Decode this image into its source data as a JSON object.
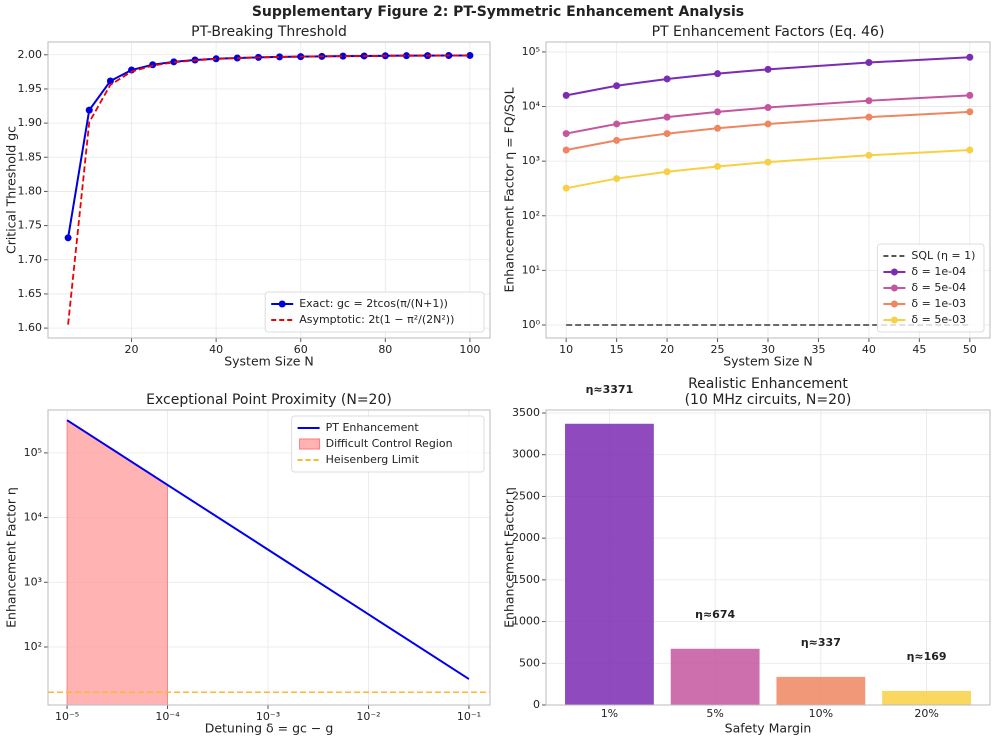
{
  "title": "Supplementary Figure 2: PT-Symmetric Enhancement Analysis",
  "chart_data": [
    {
      "type": "line",
      "title": "PT-Breaking Threshold",
      "x_label": "System Size N",
      "y_label": "Critical Threshold gc",
      "x": [
        5,
        10,
        15,
        20,
        25,
        30,
        35,
        40,
        45,
        50,
        55,
        60,
        65,
        70,
        75,
        80,
        85,
        90,
        95,
        100
      ],
      "series": [
        {
          "name": "Exact: gc = 2tcos(π/(N+1))",
          "color": "#0000dd",
          "dash": false,
          "marker": true,
          "values": [
            1.7321,
            1.919,
            1.9616,
            1.9777,
            1.9854,
            1.9897,
            1.9924,
            1.9941,
            1.9953,
            1.9962,
            1.9969,
            1.9973,
            1.9977,
            1.998,
            1.9983,
            1.9985,
            1.9987,
            1.9988,
            1.9989,
            1.999
          ]
        },
        {
          "name": "Asymptotic: 2t(1 − π²/(2N²))",
          "color": "#ee0000",
          "dash": true,
          "marker": false,
          "values": [
            1.6052,
            1.9013,
            1.9561,
            1.9753,
            1.9842,
            1.989,
            1.9919,
            1.9938,
            1.9951,
            1.9961,
            1.9967,
            1.9973,
            1.9977,
            1.998,
            1.9982,
            1.9985,
            1.9986,
            1.9988,
            1.9989,
            1.999
          ]
        }
      ],
      "xlim": [
        0.25,
        104.75
      ],
      "ylim": [
        1.5855,
        2.0187
      ],
      "xticks": [
        20,
        40,
        60,
        80,
        100
      ],
      "yticks": [
        {
          "value": 1.6,
          "label": "1.60"
        },
        {
          "value": 1.65,
          "label": "1.65"
        },
        {
          "value": 1.7,
          "label": "1.70"
        },
        {
          "value": 1.75,
          "label": "1.75"
        },
        {
          "value": 1.8,
          "label": "1.80"
        },
        {
          "value": 1.85,
          "label": "1.85"
        },
        {
          "value": 1.9,
          "label": "1.90"
        },
        {
          "value": 1.95,
          "label": "1.95"
        },
        {
          "value": 2.0,
          "label": "2.00"
        }
      ],
      "grid": true,
      "legend": "lower right"
    },
    {
      "type": "line",
      "title": "PT Enhancement Factors (Eq. 46)",
      "x_label": "System Size N",
      "y_label": "Enhancement Factor η = FQ/SQL",
      "y_log": true,
      "x": [
        10,
        15,
        20,
        25,
        30,
        40,
        50
      ],
      "series": [
        {
          "name": "SQL (η = 1)",
          "color": "#555555",
          "dash": true,
          "marker": false,
          "values": [
            1,
            1,
            1,
            1,
            1,
            1,
            1
          ]
        },
        {
          "name": "δ = 1e-04",
          "color": "#7b2cb2",
          "dash": false,
          "marker": true,
          "values": [
            16000,
            24000,
            32000,
            40000,
            48000,
            64000,
            80000
          ]
        },
        {
          "name": "δ = 5e-04",
          "color": "#c4559f",
          "dash": false,
          "marker": true,
          "values": [
            3200,
            4800,
            6400,
            8000,
            9600,
            12800,
            16000
          ]
        },
        {
          "name": "δ = 1e-03",
          "color": "#ee8660",
          "dash": false,
          "marker": true,
          "values": [
            1600,
            2400,
            3200,
            4000,
            4800,
            6400,
            8000
          ]
        },
        {
          "name": "δ = 5e-03",
          "color": "#f8d044",
          "dash": false,
          "marker": true,
          "values": [
            320,
            480,
            640,
            800,
            960,
            1280,
            1600
          ]
        }
      ],
      "xlim": [
        8,
        52
      ],
      "ylim": [
        0.578,
        152000
      ],
      "xticks": [
        10,
        15,
        20,
        25,
        30,
        35,
        40,
        45,
        50
      ],
      "yticks": [
        {
          "value": 1,
          "label": "10⁰"
        },
        {
          "value": 10,
          "label": "10¹"
        },
        {
          "value": 100,
          "label": "10²"
        },
        {
          "value": 1000,
          "label": "10³"
        },
        {
          "value": 10000,
          "label": "10⁴"
        },
        {
          "value": 100000,
          "label": "10⁵"
        }
      ],
      "grid": true,
      "legend": "lower right"
    },
    {
      "type": "line",
      "title": "Exceptional Point Proximity (N=20)",
      "x_label": "Detuning δ = gc − g",
      "y_label": "Enhancement Factor η",
      "x_log": true,
      "y_log": true,
      "series": [
        {
          "name": "PT Enhancement",
          "kind": "line",
          "color": "#0000ee",
          "dash": false,
          "marker": false,
          "x": [
            1e-05,
            0.0001,
            0.001,
            0.01,
            0.1
          ],
          "values": [
            320000,
            32000,
            3200,
            320,
            32
          ]
        },
        {
          "name": "Difficult Control Region",
          "kind": "area",
          "color": "#ff9999",
          "x": [
            1e-05,
            0.0001
          ],
          "values": [
            320000,
            32000
          ]
        },
        {
          "name": "Heisenberg Limit",
          "kind": "hline",
          "color": "#ffb732",
          "dash": true,
          "values": [
            20
          ]
        }
      ],
      "xlim": [
        6.46e-06,
        0.162
      ],
      "ylim": [
        12.7,
        460000
      ],
      "xticks": [
        {
          "value": 1e-05,
          "label": "10⁻⁵"
        },
        {
          "value": 0.0001,
          "label": "10⁻⁴"
        },
        {
          "value": 0.001,
          "label": "10⁻³"
        },
        {
          "value": 0.01,
          "label": "10⁻²"
        },
        {
          "value": 0.1,
          "label": "10⁻¹"
        }
      ],
      "yticks": [
        {
          "value": 100,
          "label": "10²"
        },
        {
          "value": 1000,
          "label": "10³"
        },
        {
          "value": 10000,
          "label": "10⁴"
        },
        {
          "value": 100000,
          "label": "10⁵"
        }
      ],
      "grid": true,
      "legend": "upper right"
    },
    {
      "type": "bar",
      "title": [
        "Realistic Enhancement",
        "(10 MHz circuits, N=20)"
      ],
      "x_label": "Safety Margin",
      "y_label": "Enhancement Factor η",
      "categories": [
        "1%",
        "5%",
        "10%",
        "20%"
      ],
      "values": [
        3371,
        674,
        337,
        169
      ],
      "value_labels": [
        "η≈3371",
        "η≈674",
        "η≈337",
        "η≈169"
      ],
      "colors": [
        "#7b2cb2",
        "#c4559f",
        "#ee8660",
        "#f8d044"
      ],
      "ylim": [
        0,
        3536
      ],
      "yticks": [
        0,
        500,
        1000,
        1500,
        2000,
        2500,
        3000,
        3500
      ],
      "grid": true
    }
  ]
}
